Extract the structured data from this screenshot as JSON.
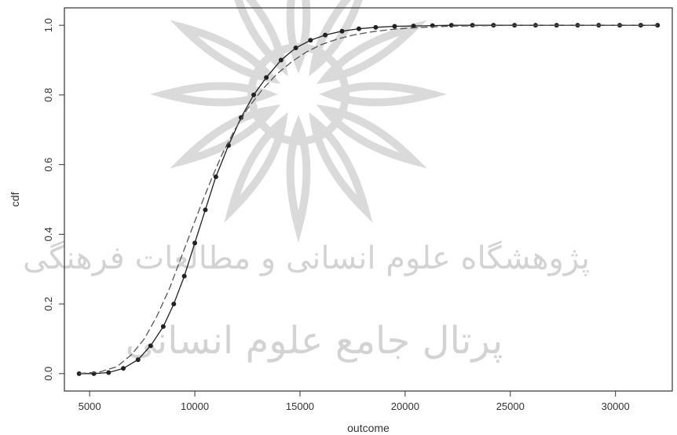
{
  "chart_data": {
    "type": "line",
    "xlabel": "outcome",
    "ylabel": "cdf",
    "xlim": [
      3800,
      32700
    ],
    "ylim": [
      -0.05,
      1.05
    ],
    "x_ticks": [
      5000,
      10000,
      15000,
      20000,
      25000,
      30000
    ],
    "y_ticks": [
      0.0,
      0.2,
      0.4,
      0.6,
      0.8,
      1.0
    ],
    "grid": false,
    "legend": "none",
    "series": [
      {
        "style": "solid-with-points",
        "color": "#222222",
        "x": [
          4500,
          5200,
          5900,
          6600,
          7300,
          7900,
          8500,
          9000,
          9500,
          10000,
          10500,
          11000,
          11600,
          12200,
          12800,
          13400,
          14100,
          14800,
          15500,
          16200,
          17000,
          17800,
          18600,
          19500,
          20400,
          21300,
          22200,
          23200,
          24200,
          25200,
          26200,
          27200,
          28200,
          29200,
          30200,
          31200,
          32000
        ],
        "y": [
          0.0,
          0.0,
          0.003,
          0.015,
          0.04,
          0.08,
          0.135,
          0.2,
          0.28,
          0.375,
          0.47,
          0.565,
          0.655,
          0.735,
          0.8,
          0.85,
          0.9,
          0.935,
          0.957,
          0.972,
          0.983,
          0.99,
          0.994,
          0.997,
          0.998,
          0.999,
          1.0,
          1.0,
          1.0,
          1.0,
          1.0,
          1.0,
          1.0,
          1.0,
          1.0,
          1.0,
          1.0
        ]
      },
      {
        "style": "dashed",
        "color": "#555555",
        "x": [
          4500,
          5500,
          6300,
          7000,
          7600,
          8200,
          8800,
          9300,
          9800,
          10300,
          10800,
          11300,
          11900,
          12500,
          13200,
          13900,
          14600,
          15300,
          16000,
          16800,
          17600,
          18500,
          19500,
          20500,
          21500,
          22500,
          24000,
          26000,
          28000,
          30000,
          32000
        ],
        "y": [
          0.0,
          0.005,
          0.02,
          0.055,
          0.1,
          0.165,
          0.245,
          0.325,
          0.405,
          0.485,
          0.56,
          0.63,
          0.7,
          0.76,
          0.815,
          0.86,
          0.895,
          0.923,
          0.944,
          0.961,
          0.973,
          0.982,
          0.989,
          0.993,
          0.996,
          0.998,
          0.999,
          1.0,
          1.0,
          1.0,
          1.0
        ]
      }
    ]
  },
  "watermark": {
    "line1": "پژوهشگاه علوم انسانی و مطالعات فرهنگی",
    "line2": "پرتال جامع علوم انسانی",
    "color": "#c9c9c9"
  }
}
